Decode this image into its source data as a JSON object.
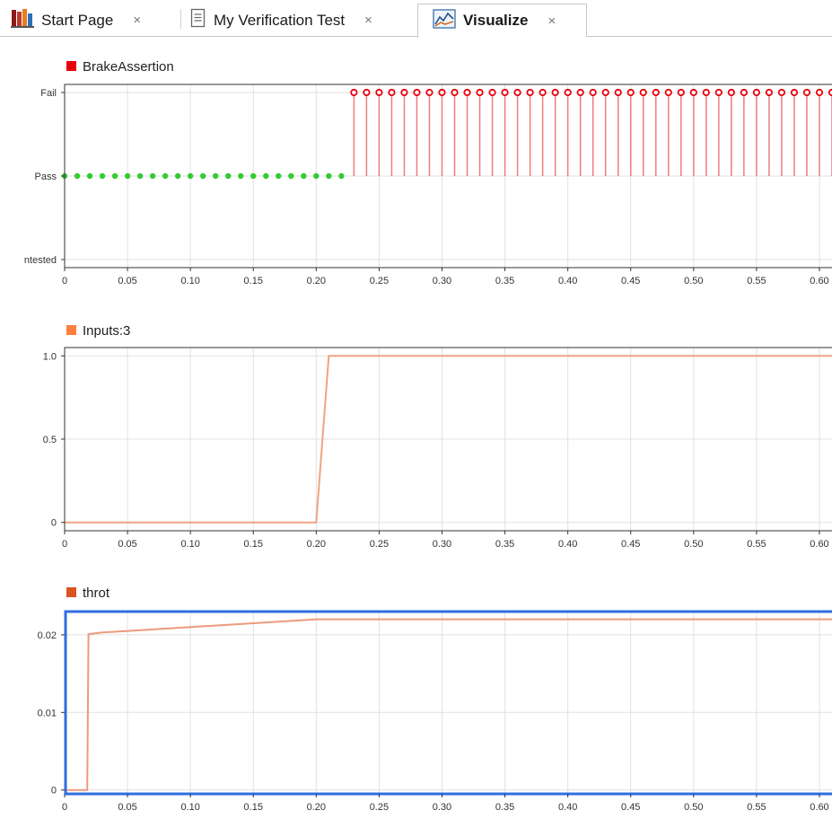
{
  "tabs": [
    {
      "label": "Start Page",
      "icon": "start-page-icon",
      "active": false
    },
    {
      "label": "My Verification Test",
      "icon": "document-icon",
      "active": false
    },
    {
      "label": "Visualize",
      "icon": "visualize-icon",
      "active": true
    }
  ],
  "close_glyph": "×",
  "colors": {
    "assertion": "#e8000b",
    "pass": "#33cc33",
    "fail_stem": "#ef7b7b",
    "inputs": "#ff7f3f",
    "inputs_line": "#f0a283",
    "throt": "#d9541e",
    "throt_line": "#ec9a7c",
    "selected_border": "#2f6de1"
  },
  "chart_data": [
    {
      "type": "line",
      "name": "BrakeAssertion",
      "legend": "BrakeAssertion",
      "y_categories": [
        "Untested",
        "Pass",
        "Fail"
      ],
      "y_tick_labels": [
        "ntested",
        "Pass",
        "Fail"
      ],
      "x_ticks": [
        "0",
        "0.05",
        "0.10",
        "0.15",
        "0.20",
        "0.25",
        "0.30",
        "0.35",
        "0.40",
        "0.45",
        "0.50",
        "0.55",
        "0.60"
      ],
      "xlim": [
        0,
        0.61
      ],
      "sample_step": 0.01,
      "pass_range": [
        0,
        0.22
      ],
      "fail_range": [
        0.23,
        0.61
      ],
      "grid": true
    },
    {
      "type": "line",
      "name": "Inputs:3",
      "legend": "Inputs:3",
      "y_ticks": [
        "0",
        "0.5",
        "1.0"
      ],
      "ylim": [
        -0.05,
        1.05
      ],
      "x_ticks": [
        "0",
        "0.05",
        "0.10",
        "0.15",
        "0.20",
        "0.25",
        "0.30",
        "0.35",
        "0.40",
        "0.45",
        "0.50",
        "0.55",
        "0.60"
      ],
      "xlim": [
        0,
        0.61
      ],
      "x": [
        0,
        0.2,
        0.21,
        0.61
      ],
      "y": [
        0,
        0,
        1,
        1
      ],
      "grid": true
    },
    {
      "type": "line",
      "name": "throt",
      "legend": "throt",
      "y_ticks": [
        "0",
        "0.01",
        "0.02"
      ],
      "ylim": [
        -0.0005,
        0.023
      ],
      "x_ticks": [
        "0",
        "0.05",
        "0.10",
        "0.15",
        "0.20",
        "0.25",
        "0.30",
        "0.35",
        "0.40",
        "0.45",
        "0.50",
        "0.55",
        "0.60"
      ],
      "xlim": [
        0,
        0.61
      ],
      "x": [
        0,
        0.018,
        0.019,
        0.03,
        0.05,
        0.07,
        0.1,
        0.13,
        0.16,
        0.2,
        0.61
      ],
      "y": [
        0,
        0,
        0.0201,
        0.0203,
        0.0205,
        0.0207,
        0.021,
        0.0213,
        0.0216,
        0.022,
        0.022
      ],
      "grid": true,
      "selected": true
    }
  ]
}
